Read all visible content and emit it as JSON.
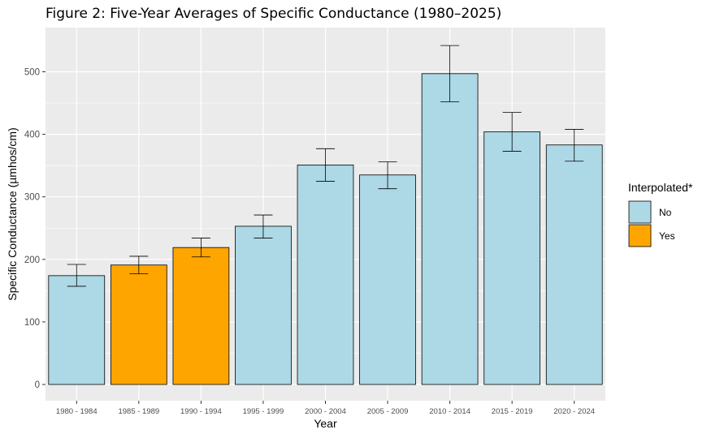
{
  "chart_data": {
    "type": "bar",
    "title": "Figure 2: Five-Year Averages of Specific Conductance (1980–2025)",
    "xlabel": "Year",
    "ylabel": "Specific Conductance (µmhos/cm)",
    "ylim": [
      0,
      550
    ],
    "yticks": [
      0,
      100,
      200,
      300,
      400,
      500
    ],
    "grid": true,
    "categories": [
      "1980 - 1984",
      "1985 - 1989",
      "1990 - 1994",
      "1995 - 1999",
      "2000 - 2004",
      "2005 - 2009",
      "2010 - 2014",
      "2015 - 2019",
      "2020 - 2024"
    ],
    "values": [
      174,
      191,
      219,
      253,
      351,
      335,
      497,
      404,
      383
    ],
    "error_low": [
      157,
      177,
      204,
      234,
      325,
      313,
      452,
      373,
      357
    ],
    "error_high": [
      192,
      205,
      234,
      271,
      377,
      356,
      542,
      435,
      408
    ],
    "interpolated": [
      "No",
      "Yes",
      "Yes",
      "No",
      "No",
      "No",
      "No",
      "No",
      "No"
    ],
    "legend": {
      "title": "Interpolated*",
      "position": "right",
      "entries": [
        {
          "label": "No",
          "color": "#add8e6"
        },
        {
          "label": "Yes",
          "color": "#ffa500"
        }
      ]
    },
    "colors": {
      "panel": "#ebebeb",
      "grid": "#ffffff",
      "bar_outline": "#000000"
    }
  }
}
